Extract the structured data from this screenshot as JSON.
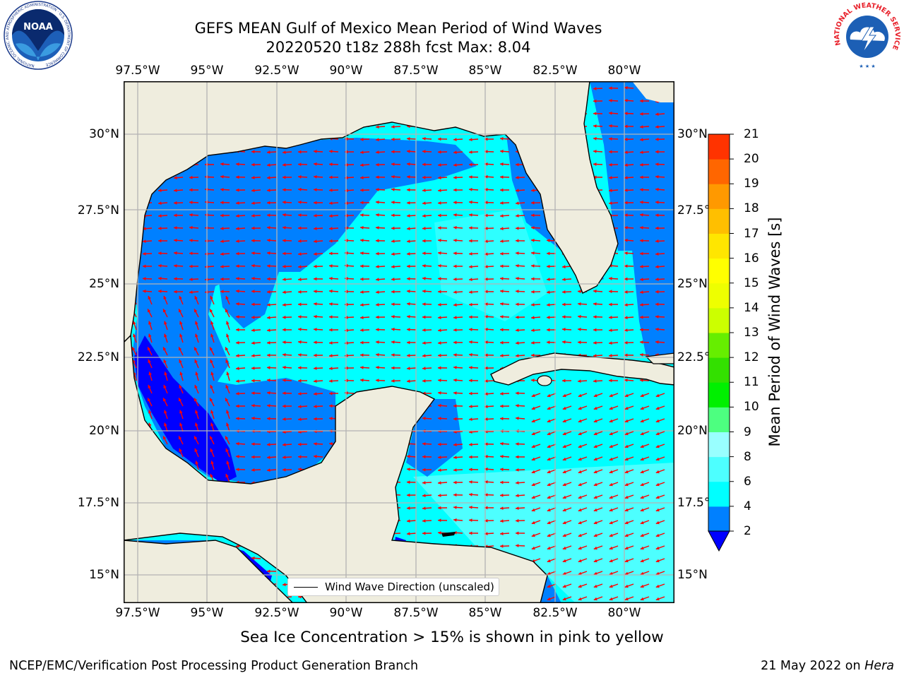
{
  "header": {
    "title_line1": "GEFS MEAN Gulf of Mexico Mean Period of Wind Waves",
    "title_line2": "20220520 t18z 288h fcst   Max: 8.04"
  },
  "logos": {
    "left": {
      "text": "NOAA",
      "ring_text": "NATIONAL OCEANIC AND ATMOSPHERIC ADMINISTRATION · U.S. DEPARTMENT OF COMMERCE"
    },
    "right": {
      "ring_text": "NATIONAL WEATHER SERVICE"
    }
  },
  "map": {
    "lon_ticks": [
      "97.5°W",
      "95°W",
      "92.5°W",
      "90°W",
      "87.5°W",
      "85°W",
      "82.5°W",
      "80°W"
    ],
    "lat_ticks_left": [
      "30°N",
      "27.5°N",
      "25°N",
      "22.5°N",
      "20°N",
      "17.5°N",
      "15°N"
    ],
    "lat_ticks_right": [
      "30°N",
      "27.5°",
      "25°N",
      "22.5°",
      "20°N",
      "17.5°",
      "15°N"
    ],
    "legend_label": "Wind Wave Direction (unscaled)",
    "colors": {
      "land": "#efedde",
      "level_below_2": "#0000ff",
      "level_2_4": "#0080ff",
      "level_4_6": "#00ffff",
      "level_6_8": "#4dffff",
      "arrow": "#ff0000",
      "grid": "#b3b3b3"
    }
  },
  "colorbar": {
    "label": "Mean Period of Wind Waves [s]",
    "ticks": [
      "2",
      "4",
      "6",
      "8",
      "9",
      "10",
      "11",
      "12",
      "13",
      "14",
      "15",
      "16",
      "17",
      "18",
      "19",
      "20",
      "21"
    ],
    "colors": [
      "#0080ff",
      "#00ffff",
      "#4dffff",
      "#99ffff",
      "#4dff80",
      "#00f000",
      "#33e000",
      "#66ee00",
      "#ccff00",
      "#eeff00",
      "#ffff00",
      "#ffe600",
      "#ffbf00",
      "#ff9900",
      "#ff6600",
      "#ff3300"
    ],
    "under_color": "#0000ff"
  },
  "caption": "Sea Ice Concentration > 15% is shown in pink to yellow",
  "footer": {
    "left": "NCEP/EMC/Verification Post Processing Product Generation Branch",
    "right_prefix": "21 May 2022 on ",
    "right_machine": "Hera"
  }
}
